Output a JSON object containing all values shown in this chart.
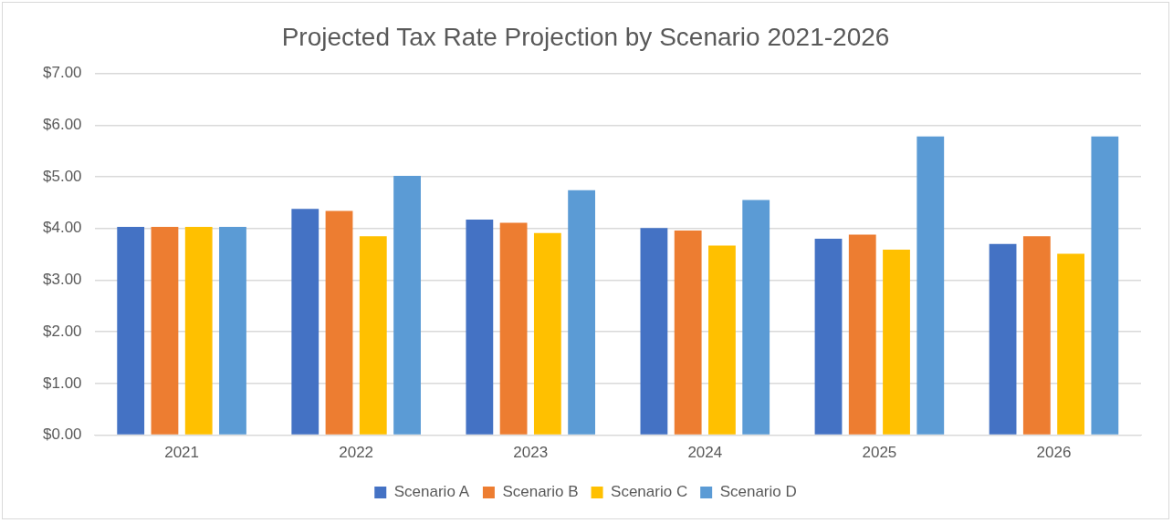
{
  "chart_data": {
    "type": "bar",
    "title": "Projected Tax Rate Projection by Scenario 2021-2026",
    "categories": [
      "2021",
      "2022",
      "2023",
      "2024",
      "2025",
      "2026"
    ],
    "series": [
      {
        "name": "Scenario A",
        "color": "#4472c4",
        "values": [
          4.03,
          4.38,
          4.17,
          4.01,
          3.8,
          3.7
        ]
      },
      {
        "name": "Scenario B",
        "color": "#ed7d31",
        "values": [
          4.03,
          4.34,
          4.11,
          3.96,
          3.88,
          3.85
        ]
      },
      {
        "name": "Scenario C",
        "color": "#ffc000",
        "values": [
          4.03,
          3.85,
          3.91,
          3.67,
          3.59,
          3.51
        ]
      },
      {
        "name": "Scenario D",
        "color": "#5b9bd5",
        "values": [
          4.03,
          5.02,
          4.74,
          4.55,
          5.78,
          5.78
        ]
      }
    ],
    "ylim": [
      0,
      7
    ],
    "yticks": [
      {
        "value": 0,
        "label": "$0.00"
      },
      {
        "value": 1,
        "label": "$1.00"
      },
      {
        "value": 2,
        "label": "$2.00"
      },
      {
        "value": 3,
        "label": "$3.00"
      },
      {
        "value": 4,
        "label": "$4.00"
      },
      {
        "value": 5,
        "label": "$5.00"
      },
      {
        "value": 6,
        "label": "$6.00"
      },
      {
        "value": 7,
        "label": "$7.00"
      }
    ],
    "grid": "y",
    "legend": "bottom"
  }
}
